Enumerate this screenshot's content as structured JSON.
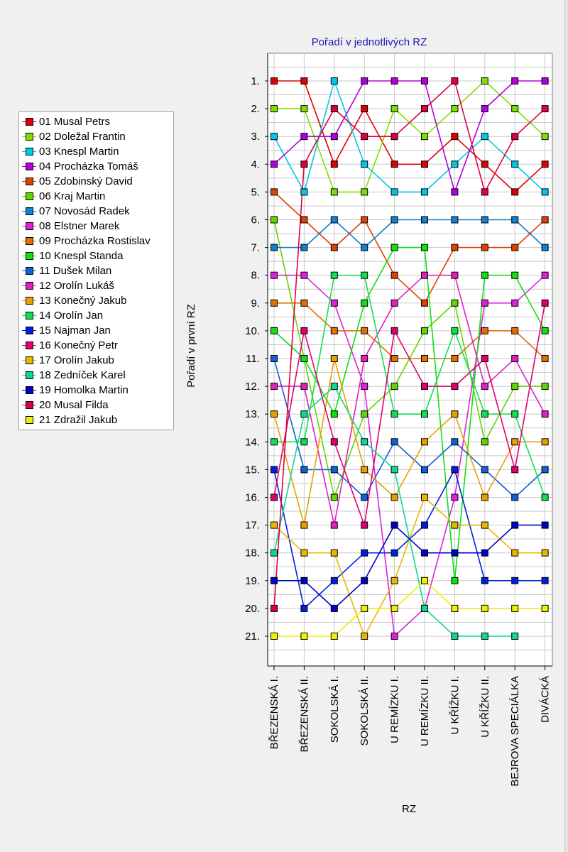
{
  "chart_data": {
    "type": "line",
    "title": "Pořadí v jednotlivých RZ",
    "xlabel": "RZ",
    "ylabel": "Pořadí v první RZ",
    "categories": [
      "BŘEZENSKÁ I.",
      "BŘEZENSKÁ II.",
      "SOKOLSKÁ I.",
      "SOKOLSKÁ II.",
      "U REMÍZKU I.",
      "U REMÍZKU II.",
      "U KŘÍŽKU I.",
      "U KŘÍŽKU II.",
      "BEJROVA SPECIÁLKA",
      "DIVÁCKÁ"
    ],
    "y_tick_labels": [
      "1.",
      "2.",
      "3.",
      "4.",
      "5.",
      "6.",
      "7.",
      "8.",
      "9.",
      "10.",
      "11.",
      "12.",
      "13.",
      "14.",
      "15.",
      "16.",
      "17.",
      "18.",
      "19.",
      "20.",
      "21."
    ],
    "ylim": [
      0,
      22
    ],
    "y_inverted": true,
    "grid": true,
    "legend_position": "left",
    "series": [
      {
        "name": "01 Musal Petrs",
        "color": "#e00000",
        "values": [
          1,
          1,
          4,
          2,
          4,
          4,
          3,
          4,
          5,
          4
        ]
      },
      {
        "name": "02 Doležal Frantin",
        "color": "#7ee000",
        "values": [
          2,
          2,
          5,
          5,
          2,
          3,
          2,
          1,
          2,
          3
        ]
      },
      {
        "name": "03 Knespl Martin",
        "color": "#00c8e8",
        "values": [
          3,
          5,
          1,
          4,
          5,
          5,
          4,
          3,
          4,
          5
        ]
      },
      {
        "name": "04 Procházka Tomáš",
        "color": "#b000e0",
        "values": [
          4,
          3,
          3,
          1,
          1,
          1,
          5,
          2,
          1,
          1
        ]
      },
      {
        "name": "05 Zdobinský David",
        "color": "#e04000",
        "values": [
          5,
          6,
          7,
          6,
          8,
          9,
          7,
          7,
          7,
          6
        ]
      },
      {
        "name": "06 Kraj Martin",
        "color": "#60d800",
        "values": [
          6,
          11,
          16,
          13,
          12,
          10,
          9,
          14,
          12,
          12
        ]
      },
      {
        "name": "07 Novosád Radek",
        "color": "#1080d0",
        "values": [
          7,
          7,
          6,
          7,
          6,
          6,
          6,
          6,
          6,
          7
        ]
      },
      {
        "name": "08 Elstner Marek",
        "color": "#e020e0",
        "values": [
          8,
          8,
          9,
          12,
          21,
          20,
          16,
          9,
          9,
          8
        ]
      },
      {
        "name": "09 Procházka Rostislav",
        "color": "#e07000",
        "values": [
          9,
          9,
          10,
          10,
          11,
          11,
          11,
          10,
          10,
          11
        ]
      },
      {
        "name": "10 Knespl Standa",
        "color": "#10e010",
        "values": [
          10,
          11,
          13,
          9,
          7,
          7,
          19,
          8,
          8,
          10
        ]
      },
      {
        "name": "11 Dušek Milan",
        "color": "#1060d8",
        "values": [
          11,
          15,
          15,
          16,
          14,
          15,
          14,
          15,
          16,
          15
        ]
      },
      {
        "name": "12 Orolín Lukáš",
        "color": "#e020c0",
        "values": [
          12,
          12,
          17,
          11,
          9,
          8,
          8,
          12,
          11,
          13
        ]
      },
      {
        "name": "13 Konečný Jakub",
        "color": "#e8a000",
        "values": [
          13,
          17,
          11,
          15,
          16,
          14,
          13,
          16,
          14,
          14
        ]
      },
      {
        "name": "14 Orolín Jan",
        "color": "#10e050",
        "values": [
          14,
          14,
          8,
          8,
          13,
          13,
          10,
          13,
          13,
          16
        ]
      },
      {
        "name": "15 Najman Jan",
        "color": "#0020e0",
        "values": [
          15,
          20,
          19,
          18,
          18,
          17,
          15,
          19,
          19,
          19
        ]
      },
      {
        "name": "16 Konečný Petr",
        "color": "#e00070",
        "values": [
          16,
          10,
          14,
          17,
          10,
          12,
          12,
          11,
          15,
          9
        ]
      },
      {
        "name": "17 Orolín Jakub",
        "color": "#e8b800",
        "values": [
          17,
          18,
          18,
          21,
          19,
          16,
          17,
          17,
          18,
          18
        ]
      },
      {
        "name": "18 Zedníček Karel",
        "color": "#10d890",
        "values": [
          18,
          13,
          12,
          14,
          15,
          20,
          21,
          21,
          21,
          null
        ]
      },
      {
        "name": "19 Homolka Martin",
        "color": "#0000c8",
        "values": [
          19,
          19,
          20,
          19,
          17,
          18,
          18,
          18,
          17,
          17
        ]
      },
      {
        "name": "20 Musal Filda",
        "color": "#e00040",
        "values": [
          20,
          4,
          2,
          3,
          3,
          2,
          1,
          5,
          3,
          2
        ]
      },
      {
        "name": "21 Zdražil Jakub",
        "color": "#f0f000",
        "values": [
          21,
          21,
          21,
          20,
          20,
          19,
          20,
          20,
          20,
          20
        ]
      }
    ]
  }
}
